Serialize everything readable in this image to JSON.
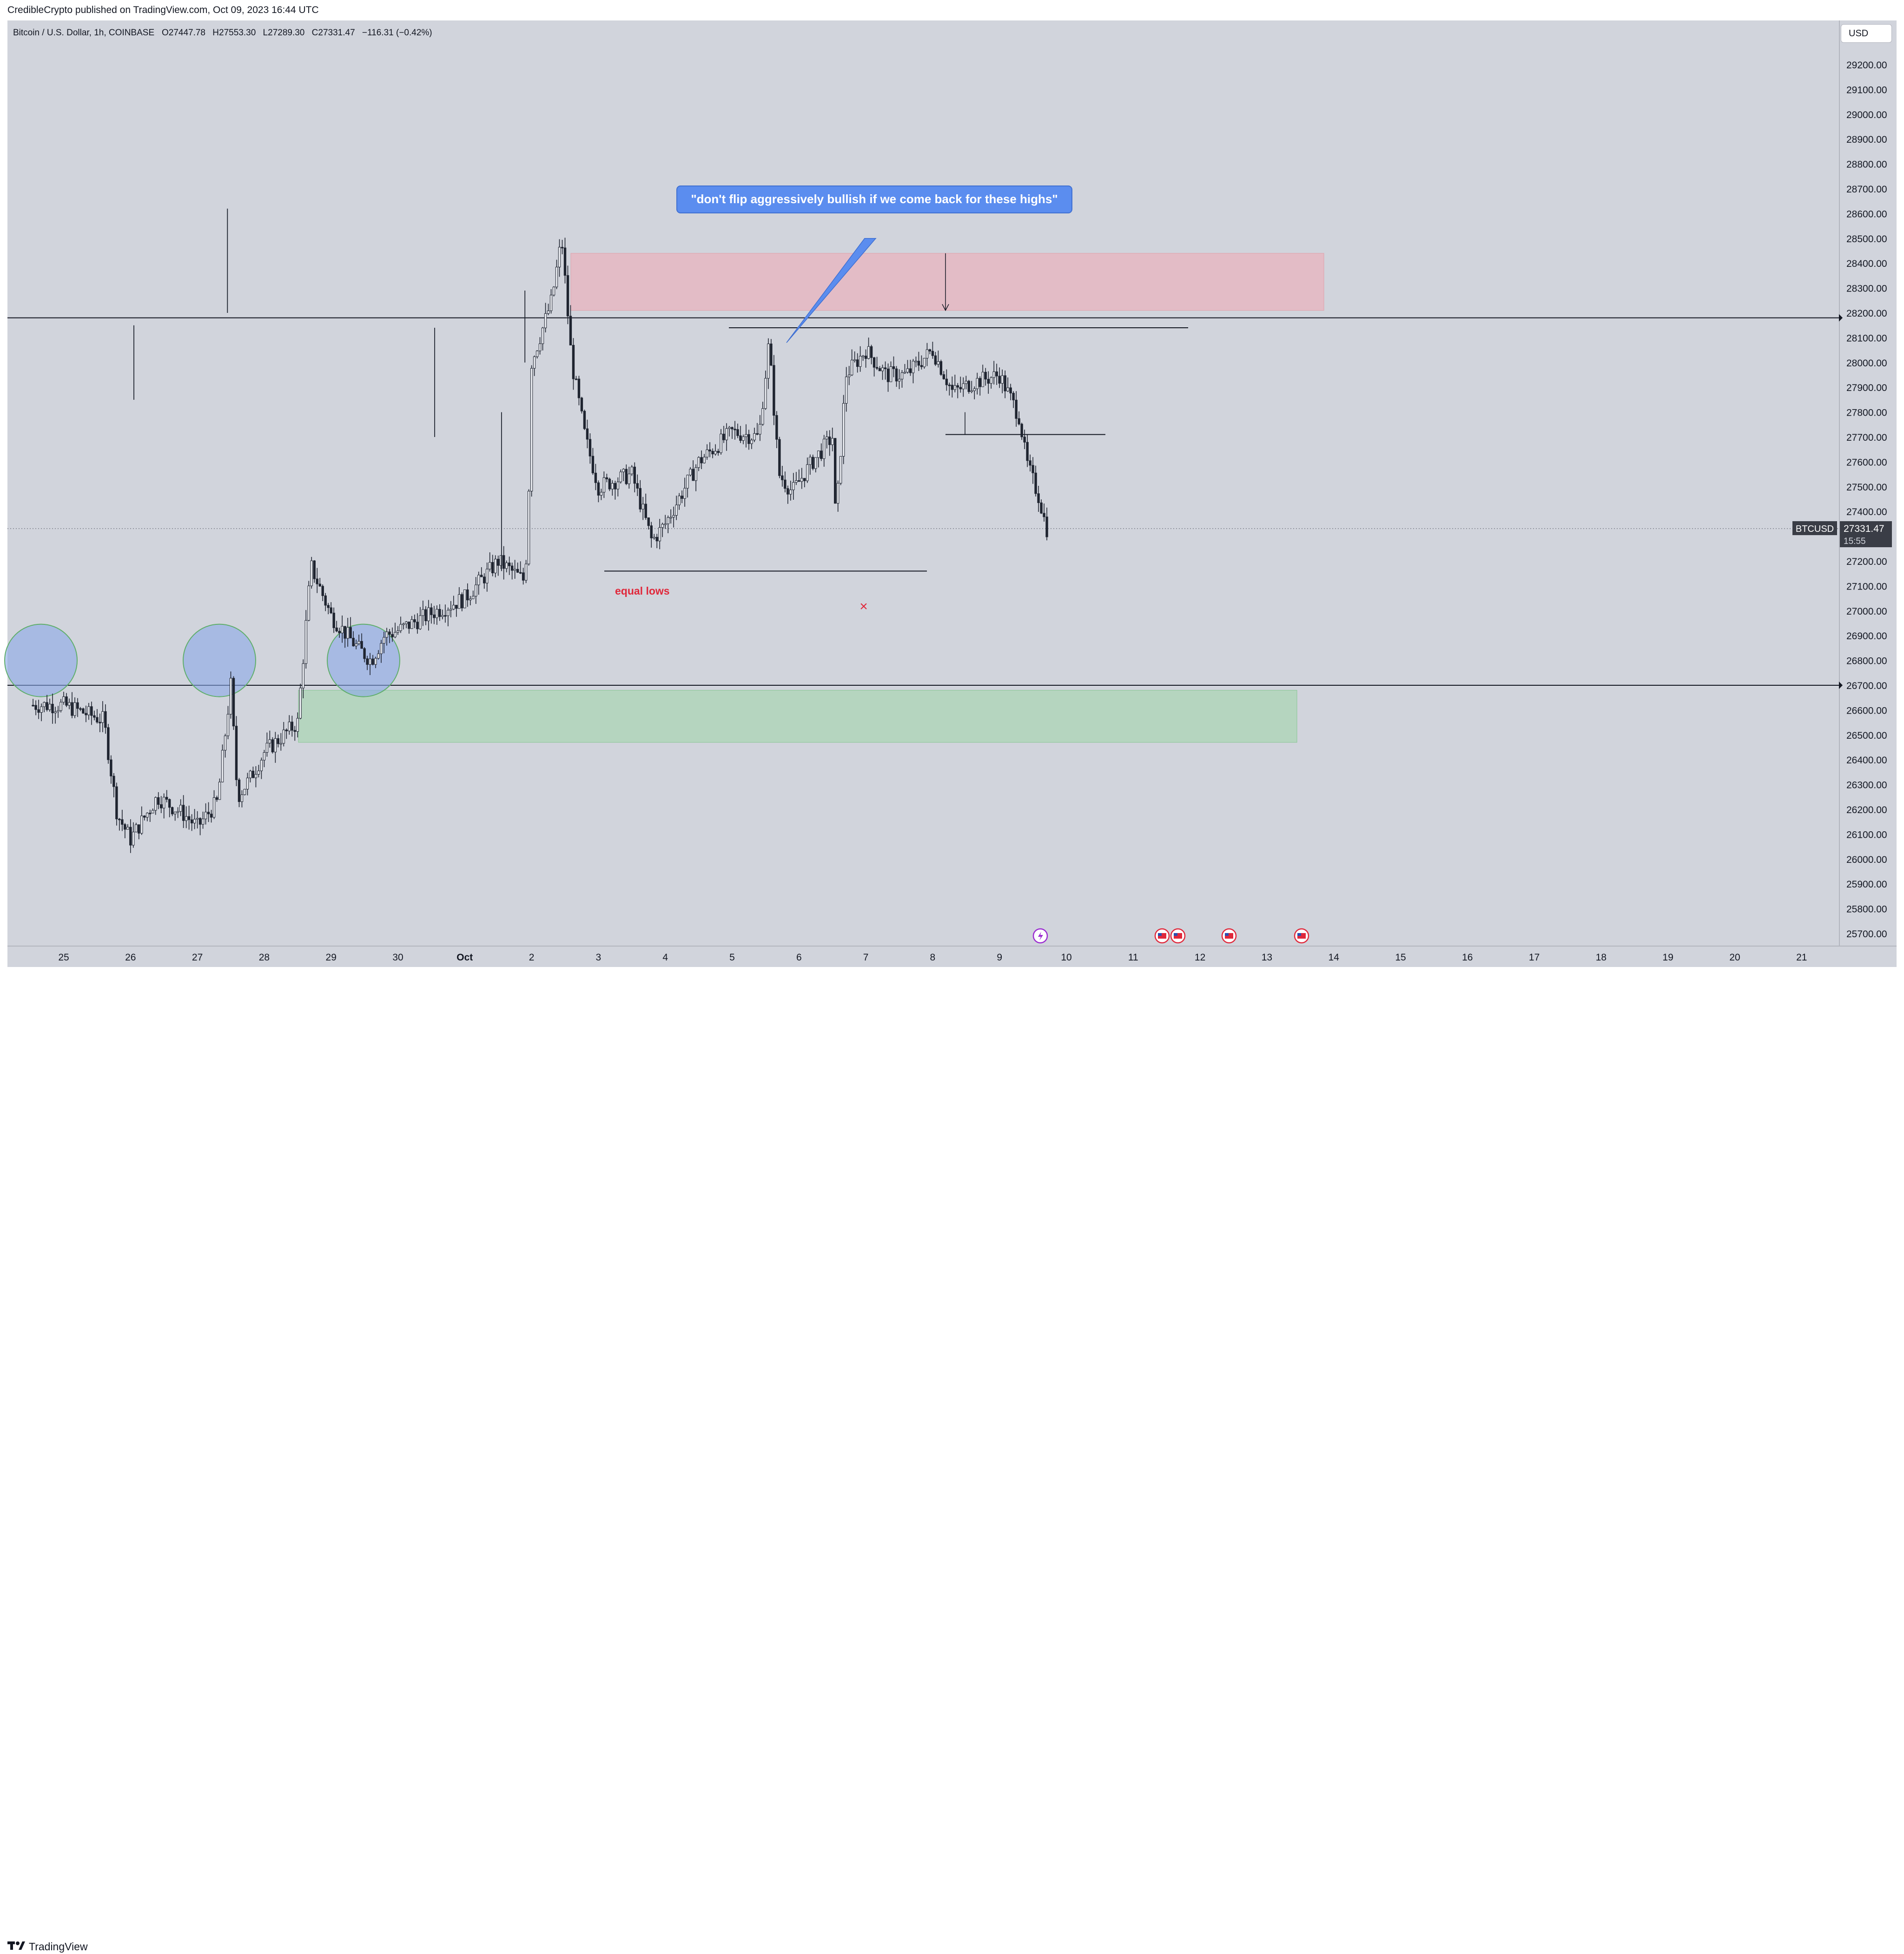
{
  "header": {
    "publisher_text": "CredibleCrypto published on TradingView.com, Oct 09, 2023 16:44 UTC"
  },
  "legend": {
    "symbol": "Bitcoin / U.S. Dollar, 1h, COINBASE",
    "open_label": "O",
    "open": "27447.78",
    "high_label": "H",
    "high": "27553.30",
    "low_label": "L",
    "low": "27289.30",
    "close_label": "C",
    "close": "27331.47",
    "change": "−116.31 (−0.42%)"
  },
  "currency_button": "USD",
  "footer": {
    "brand": "TradingView"
  },
  "chart_data": {
    "type": "candlestick",
    "symbol": "BTCUSD",
    "timeframe": "1h",
    "ylim": [
      25650,
      29350
    ],
    "yticks": [
      25700,
      25800,
      25900,
      26000,
      26100,
      26200,
      26300,
      26400,
      26500,
      26600,
      26700,
      26800,
      26900,
      27000,
      27100,
      27200,
      27300,
      27400,
      27500,
      27600,
      27700,
      27800,
      27900,
      28000,
      28100,
      28200,
      28300,
      28400,
      28500,
      28600,
      28700,
      28800,
      28900,
      29000,
      29100,
      29200
    ],
    "x_ticks": [
      "25",
      "26",
      "27",
      "28",
      "29",
      "30",
      "Oct",
      "2",
      "3",
      "4",
      "5",
      "6",
      "7",
      "8",
      "9",
      "10",
      "11",
      "12",
      "13",
      "14",
      "15",
      "16",
      "17",
      "18",
      "19",
      "20",
      "21"
    ],
    "last_price": {
      "symbol": "BTCUSD",
      "value": "27331.47",
      "countdown": "15:55"
    },
    "price_path": [
      [
        "25",
        26620
      ],
      [
        "25.6",
        26560
      ],
      [
        "25.8",
        26180
      ],
      [
        "26",
        26080
      ],
      [
        "26.4",
        26250
      ],
      [
        "26.8",
        26180
      ],
      [
        "27",
        26130
      ],
      [
        "27.3",
        26230
      ],
      [
        "27.5",
        26700
      ],
      [
        "27.6",
        26250
      ],
      [
        "27.8",
        26330
      ],
      [
        "28",
        26430
      ],
      [
        "28.5",
        26550
      ],
      [
        "28.7",
        27180
      ],
      [
        "29",
        26980
      ],
      [
        "29.4",
        26850
      ],
      [
        "29.6",
        26800
      ],
      [
        "29.8",
        26900
      ],
      [
        "30",
        26920
      ],
      [
        "30.5",
        26990
      ],
      [
        "Oct",
        27050
      ],
      [
        "Oct.5",
        27200
      ],
      [
        "Oct.9",
        27120
      ],
      [
        "Oct.95",
        27400
      ],
      [
        "2",
        28000
      ],
      [
        "2.3",
        28250
      ],
      [
        "2.45",
        28500
      ],
      [
        "2.6",
        28000
      ],
      [
        "2.8",
        27700
      ],
      [
        "3",
        27500
      ],
      [
        "3.5",
        27550
      ],
      [
        "3.8",
        27280
      ],
      [
        "4",
        27350
      ],
      [
        "4.5",
        27600
      ],
      [
        "5",
        27720
      ],
      [
        "5.4",
        27700
      ],
      [
        "5.55",
        28080
      ],
      [
        "5.7",
        27550
      ],
      [
        "5.9",
        27480
      ],
      [
        "6.2",
        27600
      ],
      [
        "6.5",
        27700
      ],
      [
        "6.55",
        27350
      ],
      [
        "6.7",
        27950
      ],
      [
        "7",
        28050
      ],
      [
        "7.3",
        27950
      ],
      [
        "7.6",
        27950
      ],
      [
        "8",
        28050
      ],
      [
        "8.3",
        27880
      ],
      [
        "8.6",
        27920
      ],
      [
        "9",
        27950
      ],
      [
        "9.3",
        27780
      ],
      [
        "9.4",
        27600
      ],
      [
        "9.6",
        27450
      ],
      [
        "9.7",
        27331
      ]
    ]
  },
  "annotations": {
    "callout_text": "\"don't flip aggressively bullish if we come back for these highs\"",
    "equal_lows_label": "equal lows",
    "x_marker": "×"
  },
  "colors": {
    "background": "#d1d4dc",
    "candle": "#1f2430",
    "resistance_zone": "#f2a8b4",
    "support_zone": "#9fd6a8",
    "circle_fill": "#8aa8e8",
    "callout": "#5b8def",
    "equal_lows": "#e0283b"
  }
}
